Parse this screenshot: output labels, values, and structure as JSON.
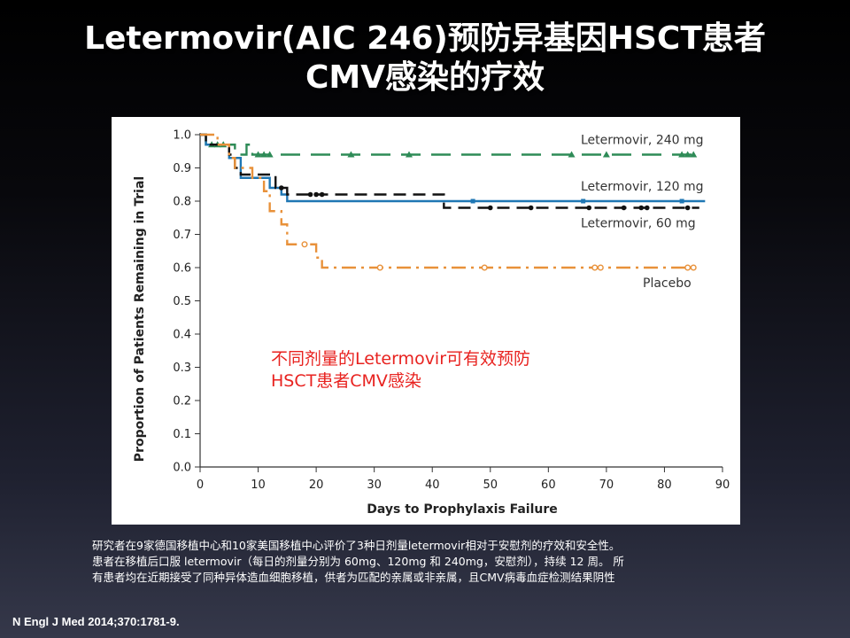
{
  "title_line1": "Letermovir(AIC 246)预防异基因HSCT患者",
  "title_line2": "CMV感染的疗效",
  "annotation_line1": "不同剂量的Letermovir可有效预防",
  "annotation_line2": "HSCT患者CMV感染",
  "caption_lines": [
    "研究者在9家德国移植中心和10家美国移植中心评价了3种日剂量letermovir相对于安慰剂的疗效和安全性。",
    "患者在移植后口服 letermovir（每日的剂量分别为 60mg、120mg 和 240mg，安慰剂），持续 12 周。 所",
    "有患者均在近期接受了同种异体造血细胞移植，供者为匹配的亲属或非亲属，且CMV病毒血症检测结果阴性"
  ],
  "citation": "N Engl J Med 2014;370:1781-9.",
  "chart_data": {
    "type": "line",
    "subtype": "kaplan-meier-step",
    "xlabel": "Days to Prophylaxis Failure",
    "ylabel": "Proportion of Patients Remaining in Trial",
    "xlim": [
      0,
      90
    ],
    "ylim": [
      0,
      1.0
    ],
    "x_ticks": [
      "0",
      "10",
      "20",
      "30",
      "40",
      "50",
      "60",
      "70",
      "80",
      "90"
    ],
    "y_ticks": [
      "0.0",
      "0.1",
      "0.2",
      "0.3",
      "0.4",
      "0.5",
      "0.6",
      "0.7",
      "0.8",
      "0.9",
      "1.0"
    ],
    "grid": false,
    "legend": "inline labels at right",
    "series": [
      {
        "name": "Letermovir, 240 mg",
        "color": "#2e8b57",
        "dash": "long-dash",
        "marker": "triangle",
        "steps": [
          [
            0,
            1.0
          ],
          [
            1,
            0.97
          ],
          [
            5,
            0.97
          ],
          [
            6,
            0.94
          ],
          [
            8,
            0.94
          ],
          [
            8,
            0.97
          ],
          [
            9,
            0.94
          ],
          [
            86,
            0.94
          ]
        ],
        "censored": [
          [
            2,
            0.97
          ],
          [
            3,
            0.97
          ],
          [
            4,
            0.97
          ],
          [
            10,
            0.94
          ],
          [
            11,
            0.94
          ],
          [
            12,
            0.94
          ],
          [
            26,
            0.94
          ],
          [
            36,
            0.94
          ],
          [
            64,
            0.94
          ],
          [
            70,
            0.94
          ],
          [
            83,
            0.94
          ],
          [
            84,
            0.94
          ],
          [
            85,
            0.94
          ]
        ]
      },
      {
        "name": "Letermovir, 120 mg",
        "color": "#1f77b4",
        "dash": "solid",
        "marker": "square",
        "steps": [
          [
            0,
            1.0
          ],
          [
            1,
            0.97
          ],
          [
            5,
            0.93
          ],
          [
            7,
            0.87
          ],
          [
            10,
            0.87
          ],
          [
            12,
            0.84
          ],
          [
            14,
            0.82
          ],
          [
            15,
            0.8
          ],
          [
            87,
            0.8
          ]
        ],
        "censored": [
          [
            47,
            0.8
          ],
          [
            66,
            0.8
          ],
          [
            83,
            0.8
          ]
        ]
      },
      {
        "name": "Letermovir, 60 mg",
        "color": "#111111",
        "dash": "dash",
        "marker": "circle",
        "steps": [
          [
            0,
            1.0
          ],
          [
            1,
            0.97
          ],
          [
            5,
            0.94
          ],
          [
            6,
            0.9
          ],
          [
            7,
            0.88
          ],
          [
            12,
            0.88
          ],
          [
            13,
            0.84
          ],
          [
            14,
            0.84
          ],
          [
            15,
            0.82
          ],
          [
            42,
            0.82
          ],
          [
            42,
            0.78
          ],
          [
            86,
            0.78
          ]
        ],
        "censored": [
          [
            14,
            0.84
          ],
          [
            19,
            0.82
          ],
          [
            20,
            0.82
          ],
          [
            21,
            0.82
          ],
          [
            50,
            0.78
          ],
          [
            57,
            0.78
          ],
          [
            67,
            0.78
          ],
          [
            73,
            0.78
          ],
          [
            76,
            0.78
          ],
          [
            77,
            0.78
          ],
          [
            84,
            0.78
          ]
        ]
      },
      {
        "name": "Placebo",
        "color": "#e8913a",
        "dash": "dash-dot",
        "marker": "open-circle",
        "steps": [
          [
            0,
            1.0
          ],
          [
            3,
            0.97
          ],
          [
            5,
            0.93
          ],
          [
            6,
            0.9
          ],
          [
            9,
            0.87
          ],
          [
            11,
            0.83
          ],
          [
            12,
            0.77
          ],
          [
            14,
            0.73
          ],
          [
            15,
            0.67
          ],
          [
            20,
            0.63
          ],
          [
            21,
            0.6
          ],
          [
            85,
            0.6
          ]
        ],
        "censored": [
          [
            18,
            0.67
          ],
          [
            31,
            0.6
          ],
          [
            49,
            0.6
          ],
          [
            68,
            0.6
          ],
          [
            69,
            0.6
          ],
          [
            84,
            0.6
          ],
          [
            85,
            0.6
          ]
        ]
      }
    ]
  }
}
